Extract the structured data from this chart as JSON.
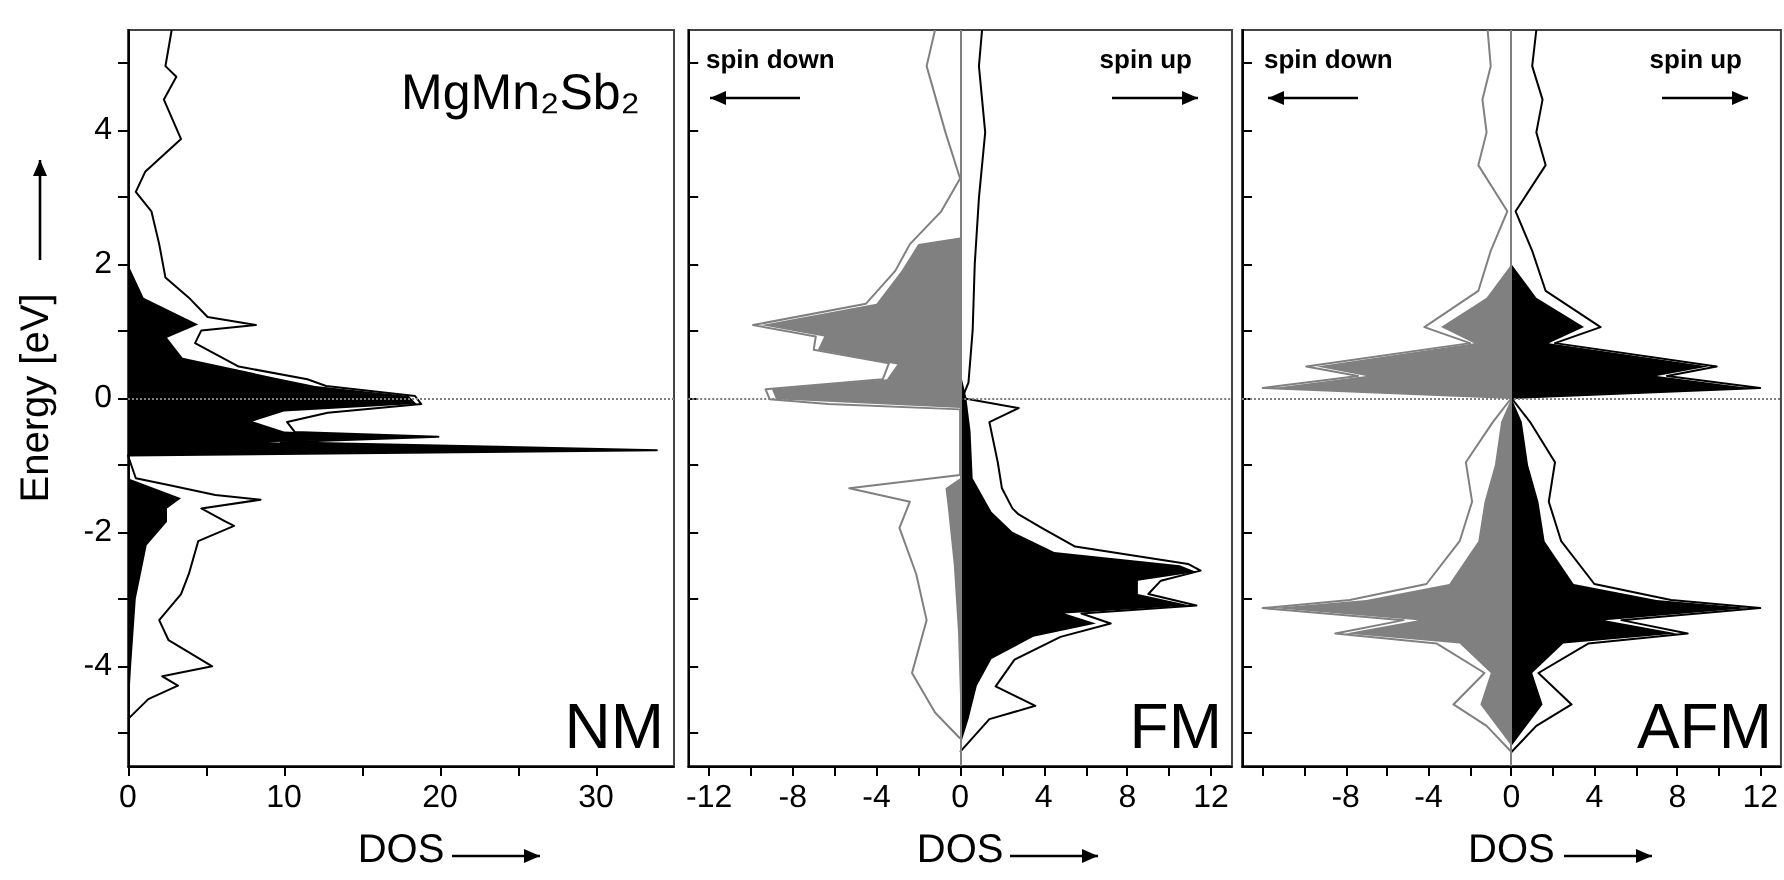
{
  "chart_data": [
    {
      "type": "line",
      "title": "MgMn₂Sb₂",
      "xlabel": "DOS",
      "ylabel": "Energy [eV]",
      "annotations": [
        "NM"
      ],
      "xlim": [
        0,
        35
      ],
      "xticks": [
        0,
        {
          "value": 5,
          "label": null
        },
        10,
        {
          "value": 15,
          "label": null
        },
        20,
        {
          "value": 25,
          "label": null
        },
        30
      ],
      "ylim": [
        -5.5,
        5.5
      ],
      "yticks": [
        {
          "value": -5,
          "label": null
        },
        -4,
        {
          "value": -3,
          "label": null
        },
        -2,
        {
          "value": -1,
          "label": null
        },
        0,
        {
          "value": 1,
          "label": null
        },
        2,
        {
          "value": 3,
          "label": null
        },
        4,
        {
          "value": 5,
          "label": null
        }
      ],
      "ref_lines": [
        {
          "axis": "y",
          "value": 0,
          "color": "#808080",
          "line_style": "dotted"
        }
      ],
      "series": [
        {
          "type": "area",
          "color": "#000000",
          "x": [
            0,
            1.0,
            4.5,
            2.5,
            3.5,
            9.5,
            12.0,
            18.0,
            18.5,
            10,
            8,
            10,
            19.5,
            9,
            33.9,
            0,
            0,
            3.4,
            2.5,
            2.5,
            1.2,
            0.5,
            0.2,
            0
          ],
          "values": [
            2.0,
            1.5,
            1.1,
            0.9,
            0.6,
            0.3,
            0.18,
            0.03,
            -0.09,
            -0.2,
            -0.35,
            -0.5,
            -0.58,
            -0.66,
            -0.78,
            -0.86,
            -1.2,
            -1.5,
            -1.65,
            -1.85,
            -2.2,
            -3.0,
            -4.0,
            -4.8
          ]
        },
        {
          "color": "#000000",
          "x": [
            2.8,
            2.4,
            3.1,
            2.3,
            3.4,
            1.1,
            0.5,
            1.5,
            2.0,
            2.4,
            3.9,
            5.1,
            8.2,
            4.7,
            4.3,
            7.1,
            11.5,
            12.7,
            18.4,
            18.8,
            12.8,
            10.2,
            10.7,
            19.9,
            9.8,
            33.9,
            0,
            0.5,
            2.6,
            5.6,
            8.5,
            4.7,
            6.2,
            6.8,
            4.5,
            3.9,
            3.4,
            2.0,
            2.6,
            5.4,
            2.2,
            3.2,
            1.3,
            0
          ],
          "values": [
            5.5,
            4.96,
            4.8,
            4.46,
            3.87,
            3.38,
            3.08,
            2.79,
            2.3,
            1.8,
            1.5,
            1.21,
            1.09,
            1.01,
            0.82,
            0.47,
            0.28,
            0.18,
            0.03,
            -0.09,
            -0.22,
            -0.36,
            -0.51,
            -0.58,
            -0.66,
            -0.78,
            -0.86,
            -1.2,
            -1.3,
            -1.45,
            -1.52,
            -1.65,
            -1.84,
            -1.91,
            -2.14,
            -2.63,
            -2.93,
            -3.32,
            -3.62,
            -4.01,
            -4.16,
            -4.3,
            -4.5,
            -4.8
          ]
        }
      ]
    },
    {
      "type": "line",
      "xlabel": "DOS",
      "annotations": [
        "spin down",
        "spin up",
        "FM"
      ],
      "tick_labels": "x",
      "xlim": [
        -13,
        13
      ],
      "xticks": [
        -12,
        {
          "value": -10,
          "label": null
        },
        -8,
        {
          "value": -6,
          "label": null
        },
        -4,
        {
          "value": -2,
          "label": null
        },
        0,
        {
          "value": 2,
          "label": null
        },
        4,
        {
          "value": 6,
          "label": null
        },
        8,
        {
          "value": 10,
          "label": null
        },
        12
      ],
      "ylim": [
        -5.5,
        5.5
      ],
      "yticks": [
        {
          "value": -5,
          "label": null
        },
        {
          "value": -4,
          "label": null
        },
        {
          "value": -3,
          "label": null
        },
        {
          "value": -2,
          "label": null
        },
        {
          "value": -1,
          "label": null
        },
        {
          "value": 0,
          "label": null
        },
        {
          "value": 1,
          "label": null
        },
        {
          "value": 2,
          "label": null
        },
        {
          "value": 3,
          "label": null
        },
        {
          "value": 4,
          "label": null
        },
        {
          "value": 5,
          "label": null
        }
      ],
      "ref_lines": [
        {
          "axis": "y",
          "value": 0,
          "color": "#808080",
          "line_style": "dotted"
        },
        {
          "axis": "x",
          "value": 0,
          "color": "#808080",
          "line_style": "solid"
        }
      ],
      "series": [
        {
          "type": "area",
          "color": "#808080",
          "x": [
            0,
            -2.0,
            -2.8,
            -4.0,
            -9.5,
            -6.5,
            -6.8,
            -3.0,
            -3.5,
            -9.0,
            -8.8,
            0,
            0,
            -0.7,
            -0.6,
            -0.3,
            -0.1,
            0
          ],
          "values": [
            2.4,
            2.3,
            1.9,
            1.41,
            1.09,
            0.92,
            0.72,
            0.5,
            0.28,
            0.13,
            -0.02,
            -0.15,
            -1.2,
            -1.35,
            -1.6,
            -2.5,
            -3.5,
            -4.5
          ]
        },
        {
          "type": "area",
          "color": "#000000",
          "x": [
            0,
            0.3,
            0.5,
            0.6,
            1.5,
            2.5,
            4.5,
            10.5,
            11.3,
            8.5,
            8.5,
            11.0,
            5.0,
            6.5,
            3.5,
            1.5,
            0.8,
            0.4,
            0
          ],
          "values": [
            0.4,
            0,
            -0.5,
            -1.2,
            -1.7,
            -2.0,
            -2.3,
            -2.5,
            -2.6,
            -2.73,
            -2.93,
            -3.1,
            -3.22,
            -3.37,
            -3.57,
            -3.9,
            -4.3,
            -4.8,
            -5.2
          ]
        },
        {
          "color": "#808080",
          "x": [
            -1.2,
            -1.6,
            -0.7,
            0,
            -0.9,
            -2.4,
            -3.1,
            -4.5,
            -9.9,
            -6.9,
            -7.0,
            -3.4,
            -3.7,
            -9.3,
            -9.1,
            -6.3,
            0,
            0,
            -5.3,
            -2.4,
            -2.9,
            -2.1,
            -1.6,
            -2.3,
            -1.2,
            0
          ],
          "values": [
            5.5,
            4.96,
            3.97,
            3.28,
            2.79,
            2.3,
            1.9,
            1.41,
            1.09,
            0.92,
            0.72,
            0.52,
            0.28,
            0.13,
            -0.02,
            -0.09,
            -0.17,
            -1.15,
            -1.35,
            -1.55,
            -1.94,
            -2.63,
            -3.32,
            -4.11,
            -4.7,
            -5.09
          ]
        },
        {
          "color": "#000000",
          "x": [
            1.05,
            0.9,
            1.2,
            0.9,
            0.7,
            0.6,
            0.4,
            0.1,
            2.8,
            1.4,
            1.8,
            2.0,
            2.5,
            2.8,
            3.9,
            5.5,
            10.9,
            11.5,
            9.6,
            9.0,
            11.3,
            5.8,
            7.2,
            4.8,
            2.6,
            1.7,
            3.6,
            1.4,
            0
          ],
          "values": [
            5.5,
            4.96,
            3.97,
            2.99,
            2.0,
            1.01,
            0.23,
            0,
            -0.15,
            -0.36,
            -0.96,
            -1.35,
            -1.65,
            -1.74,
            -1.94,
            -2.22,
            -2.48,
            -2.58,
            -2.73,
            -2.93,
            -3.1,
            -3.22,
            -3.37,
            -3.57,
            -3.91,
            -4.31,
            -4.6,
            -4.8,
            -5.29
          ]
        }
      ]
    },
    {
      "type": "line",
      "xlabel": "DOS",
      "annotations": [
        "spin down",
        "spin up",
        "AFM"
      ],
      "tick_labels": "x",
      "xlim": [
        -13,
        13
      ],
      "xticks": [
        {
          "value": -12,
          "label": null
        },
        {
          "value": -10,
          "label": null
        },
        -8,
        {
          "value": -6,
          "label": null
        },
        -4,
        {
          "value": -2,
          "label": null
        },
        0,
        {
          "value": 2,
          "label": null
        },
        4,
        {
          "value": 6,
          "label": null
        },
        8,
        {
          "value": 10,
          "label": null
        },
        12
      ],
      "ylim": [
        -5.5,
        5.5
      ],
      "yticks": [
        {
          "value": -5,
          "label": null
        },
        {
          "value": -4,
          "label": null
        },
        {
          "value": -3,
          "label": null
        },
        {
          "value": -2,
          "label": null
        },
        {
          "value": -1,
          "label": null
        },
        {
          "value": 0,
          "label": null
        },
        {
          "value": 1,
          "label": null
        },
        {
          "value": 2,
          "label": null
        },
        {
          "value": 3,
          "label": null
        },
        {
          "value": 4,
          "label": null
        },
        {
          "value": 5,
          "label": null
        }
      ],
      "ref_lines": [
        {
          "axis": "y",
          "value": 0,
          "color": "#808080",
          "line_style": "dotted"
        },
        {
          "axis": "x",
          "value": 0,
          "color": "#808080",
          "line_style": "solid"
        }
      ],
      "series": [
        {
          "type": "area",
          "color": "#808080",
          "x": [
            0,
            -1.2,
            -3.4,
            -1.8,
            -9.4,
            -7.0,
            -11.5,
            0,
            -0.5,
            -0.8,
            -1.3,
            -1.6,
            -3.0,
            -7.0,
            -11.5,
            -4.5,
            -8.0,
            -2.5,
            -1.0,
            -1.5,
            0
          ],
          "values": [
            2.0,
            1.5,
            1.06,
            0.82,
            0.47,
            0.33,
            0.15,
            0,
            -0.36,
            -1.0,
            -1.55,
            -2.14,
            -2.78,
            -3.02,
            -3.14,
            -3.32,
            -3.52,
            -3.67,
            -4.11,
            -4.58,
            -5.2
          ]
        },
        {
          "type": "area",
          "color": "#000000",
          "x": [
            0,
            1.2,
            3.5,
            1.8,
            9.5,
            7.0,
            11.5,
            0,
            0.5,
            0.8,
            1.3,
            1.6,
            3.0,
            7.0,
            11.5,
            4.5,
            8.0,
            2.5,
            1.0,
            1.5,
            0
          ],
          "values": [
            2.0,
            1.5,
            1.06,
            0.82,
            0.47,
            0.33,
            0.15,
            0,
            -0.36,
            -1.0,
            -1.55,
            -2.14,
            -2.78,
            -3.02,
            -3.14,
            -3.32,
            -3.52,
            -3.67,
            -4.11,
            -4.58,
            -5.2
          ]
        },
        {
          "color": "#808080",
          "x": [
            -1.15,
            -1.0,
            -1.4,
            -1.2,
            -1.6,
            -0.2,
            -1.0,
            -1.6,
            -4.2,
            -2.0,
            -9.9,
            -7.4,
            -12.0,
            0,
            -0.9,
            -2.2,
            -1.9,
            -2.5,
            -4.1,
            -7.8,
            -12.0,
            -5.2,
            -8.5,
            -3.6,
            -1.3,
            -2.8,
            -1.2,
            0
          ],
          "values": [
            5.5,
            4.96,
            4.46,
            3.97,
            3.48,
            2.79,
            2.2,
            1.6,
            1.06,
            0.82,
            0.47,
            0.33,
            0.15,
            0,
            -0.36,
            -0.96,
            -1.55,
            -2.14,
            -2.78,
            -3.02,
            -3.14,
            -3.32,
            -3.52,
            -3.67,
            -4.11,
            -4.58,
            -4.9,
            -5.29
          ]
        },
        {
          "color": "#000000",
          "x": [
            1.2,
            1.0,
            1.5,
            1.2,
            1.65,
            0.2,
            1.0,
            1.65,
            4.3,
            2.1,
            9.9,
            7.5,
            12.0,
            0,
            0.9,
            2.1,
            1.8,
            2.4,
            4.0,
            7.7,
            12.0,
            5.3,
            8.5,
            3.7,
            1.3,
            2.9,
            1.2,
            0
          ],
          "values": [
            5.5,
            4.96,
            4.46,
            3.97,
            3.48,
            2.79,
            2.2,
            1.6,
            1.06,
            0.82,
            0.47,
            0.33,
            0.15,
            0,
            -0.36,
            -0.96,
            -1.55,
            -2.14,
            -2.78,
            -3.02,
            -3.14,
            -3.32,
            -3.52,
            -3.67,
            -4.11,
            -4.58,
            -4.9,
            -5.29
          ]
        }
      ]
    }
  ]
}
